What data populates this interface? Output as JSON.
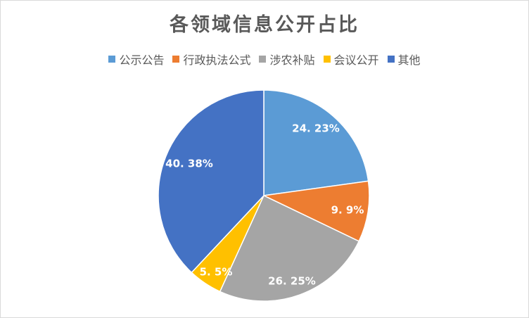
{
  "chart_data": {
    "type": "pie",
    "title": "各领域信息公开占比",
    "legend_position": "top",
    "categories": [
      "公示公告",
      "行政执法公式",
      "涉农补贴",
      "会议公开",
      "其他"
    ],
    "values": [
      24.23,
      9.9,
      26.25,
      5.5,
      40.38
    ],
    "data_labels": [
      "24. 23%",
      "9. 9%",
      "26. 25%",
      "5. 5%",
      "40. 38%"
    ],
    "colors": [
      "#5B9BD5",
      "#ED7D31",
      "#A5A5A5",
      "#FFC000",
      "#4472C4"
    ]
  }
}
